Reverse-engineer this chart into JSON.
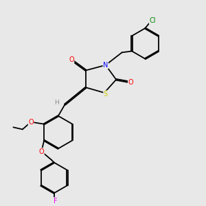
{
  "bg_color": "#e8e8e8",
  "atom_colors": {
    "O": "#ff0000",
    "N": "#0000ff",
    "S": "#cccc00",
    "Cl": "#008800",
    "F": "#ee00ee",
    "H": "#888888",
    "C": "#000000"
  },
  "lw": 1.3,
  "dbl_off": 0.018
}
